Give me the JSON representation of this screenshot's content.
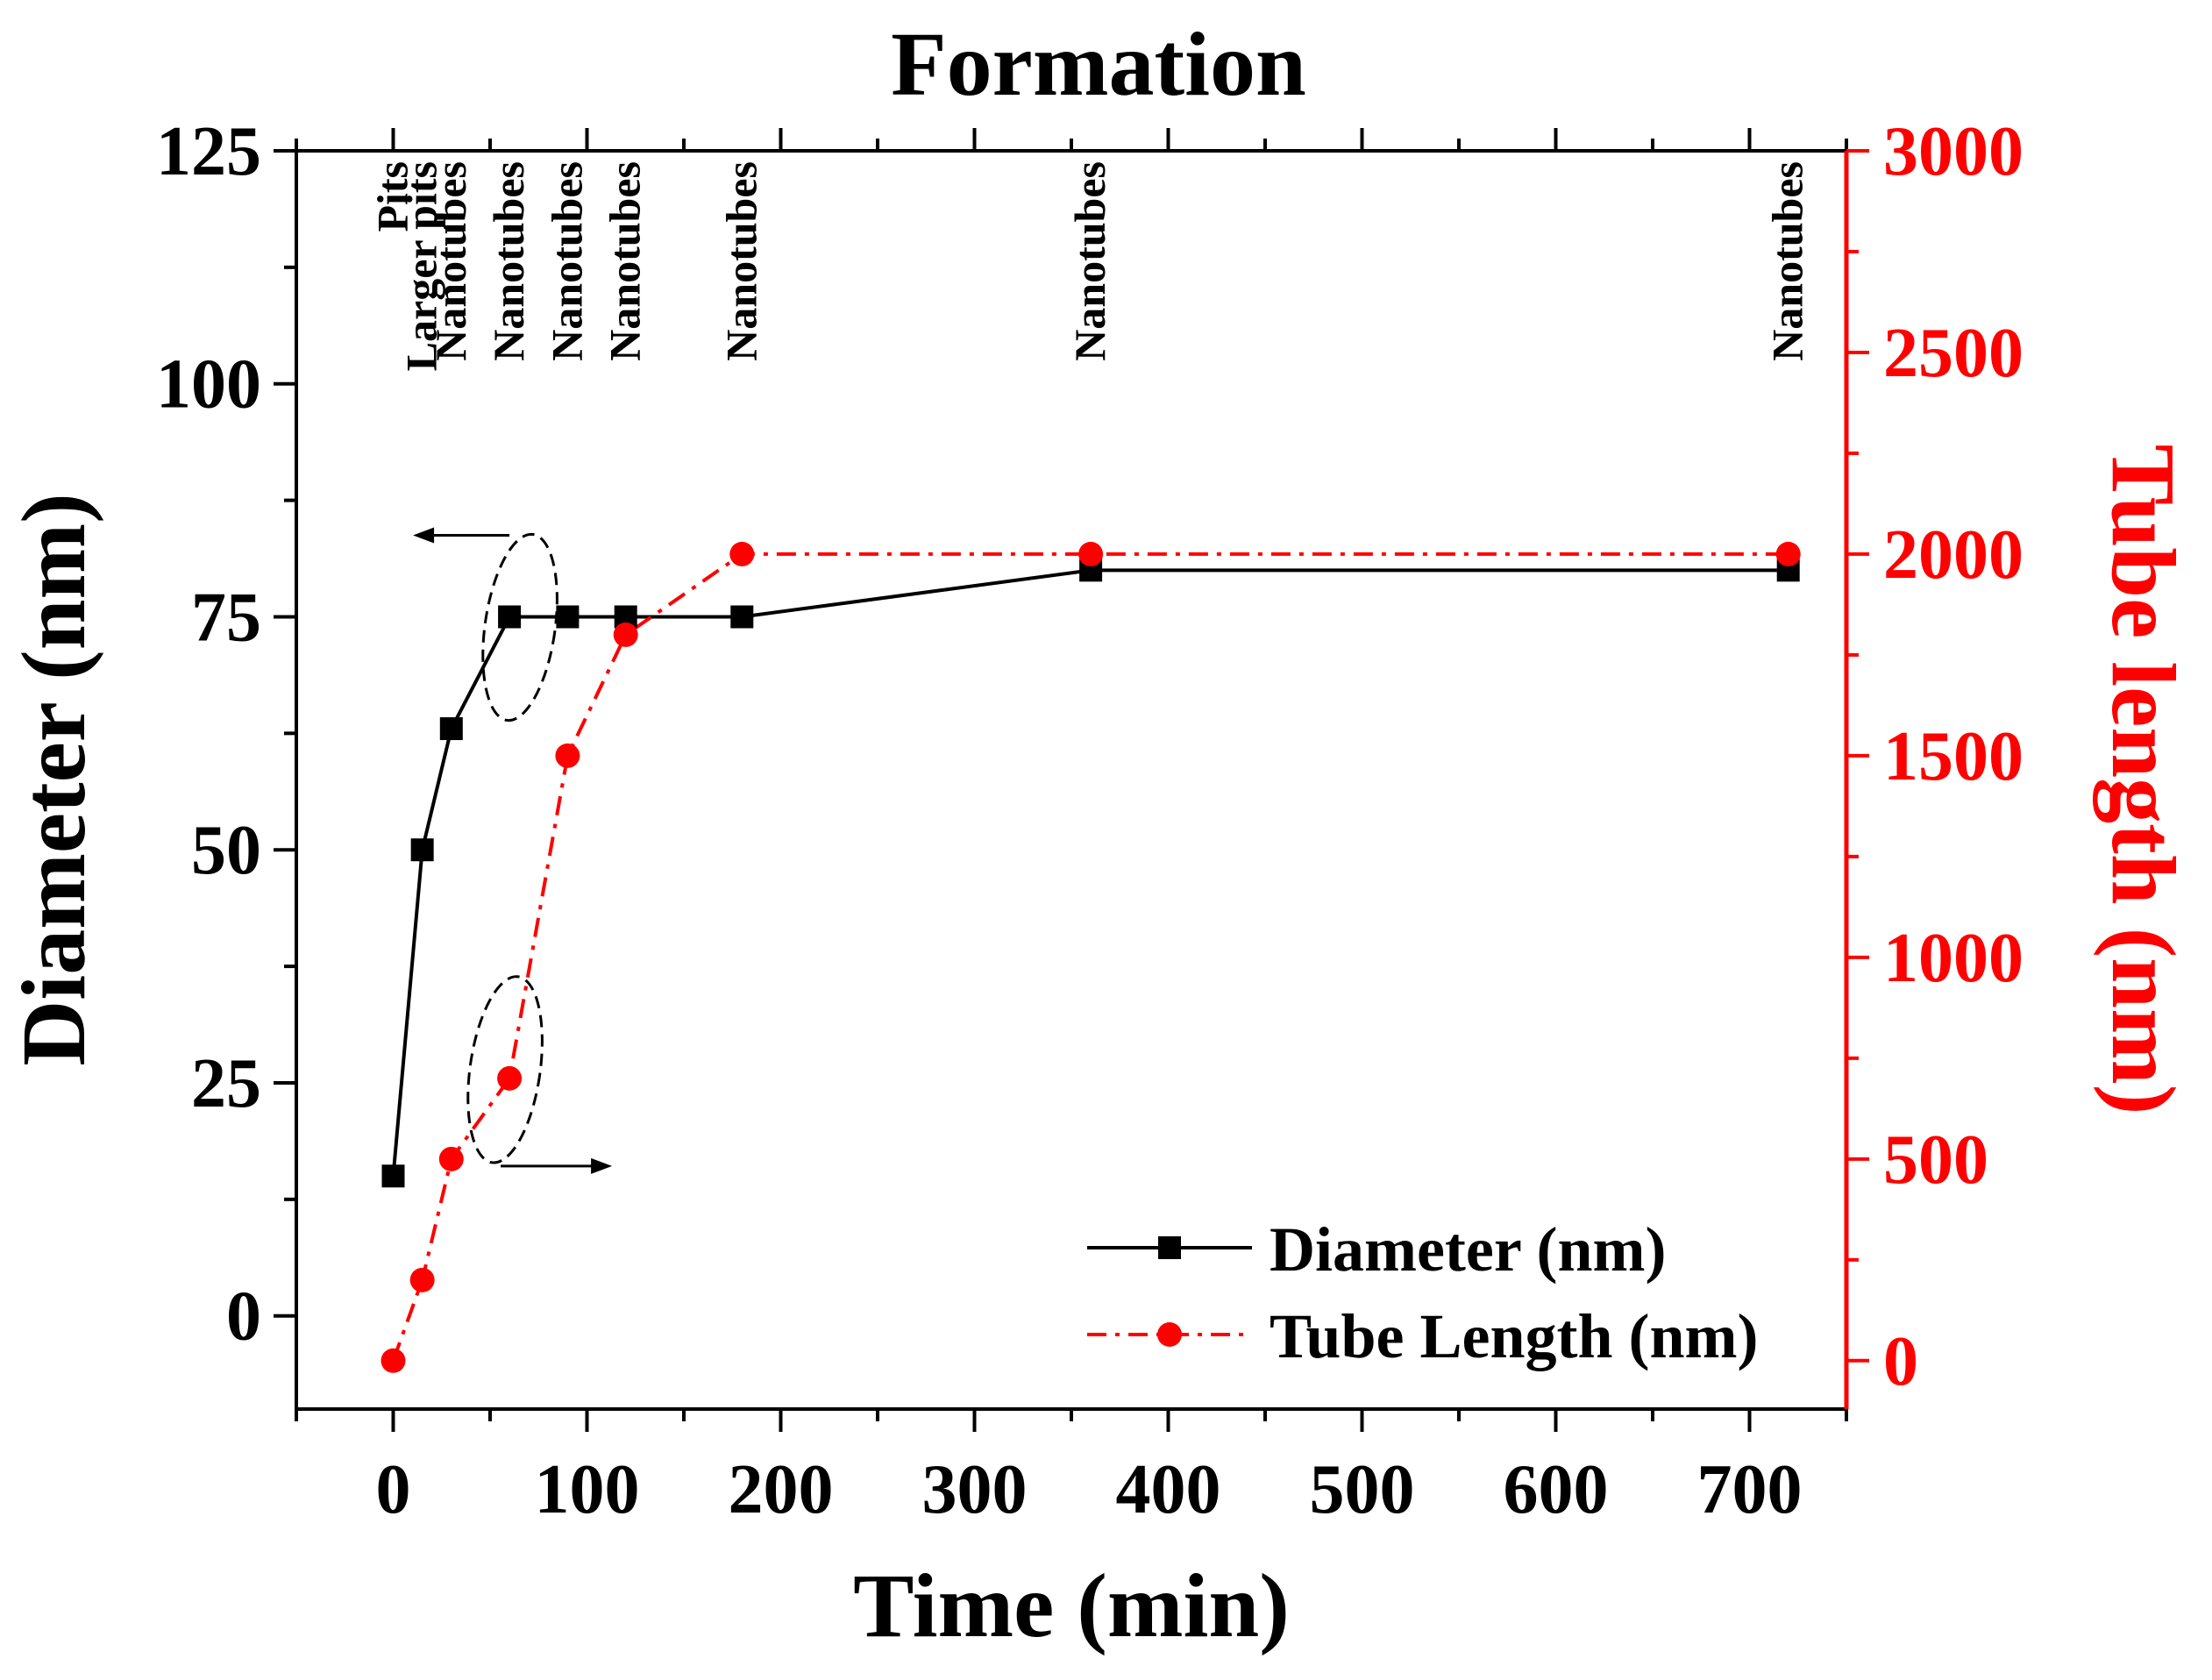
{
  "chart_data": {
    "type": "line",
    "title": "Formation",
    "xlabel": "Time (min)",
    "ylabel": "Diameter (nm)",
    "y2label": "Tube length (nm)",
    "xlim": [
      -50,
      750
    ],
    "ylim": [
      -10,
      125
    ],
    "y2lim": [
      -120,
      3000
    ],
    "xticks": [
      0,
      100,
      200,
      300,
      400,
      500,
      600,
      700
    ],
    "yticks": [
      0,
      25,
      50,
      75,
      100,
      125
    ],
    "y2ticks": [
      0,
      500,
      1000,
      1500,
      2000,
      2500,
      3000
    ],
    "grid": false,
    "legend_position": "bottom-right",
    "series": [
      {
        "name": "Diameter (nm)",
        "axis": "left",
        "color": "#000000",
        "marker": "square",
        "line_style": "solid",
        "x": [
          0,
          15,
          30,
          60,
          90,
          120,
          180,
          360,
          720
        ],
        "values": [
          15,
          50,
          63,
          75,
          75,
          75,
          75,
          80,
          80
        ]
      },
      {
        "name": "Tube Length (nm)",
        "axis": "right",
        "color": "#ff0000",
        "marker": "circle",
        "line_style": "dash-dot",
        "x": [
          0,
          15,
          30,
          60,
          90,
          120,
          180,
          360,
          720
        ],
        "values": [
          0,
          200,
          500,
          700,
          1500,
          1800,
          2000,
          2000,
          2000
        ]
      }
    ],
    "annotations": [
      {
        "x": 0,
        "label": "Pits"
      },
      {
        "x": 15,
        "label": "Larger pits"
      },
      {
        "x": 30,
        "label": "Nanotubes"
      },
      {
        "x": 60,
        "label": "Nanotubes"
      },
      {
        "x": 90,
        "label": "Nanotubes"
      },
      {
        "x": 120,
        "label": "Nanotubes"
      },
      {
        "x": 180,
        "label": "Nanotubes"
      },
      {
        "x": 360,
        "label": "Nanotubes"
      },
      {
        "x": 720,
        "label": "Nanotubes"
      }
    ],
    "axis_arrows": [
      {
        "series": "Diameter (nm)",
        "direction": "left"
      },
      {
        "series": "Tube Length (nm)",
        "direction": "right"
      }
    ]
  }
}
